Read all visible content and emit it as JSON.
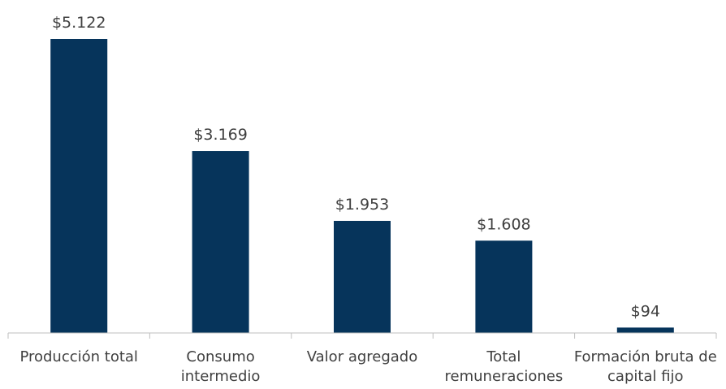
{
  "chart_data": {
    "type": "bar",
    "categories": [
      "Producción total",
      "Consumo intermedio",
      "Valor agregado",
      "Total remuneraciones",
      "Formación bruta de capital fijo"
    ],
    "values": [
      5122,
      3169,
      1953,
      1608,
      94
    ],
    "value_labels": [
      "$5.122",
      "$3.169",
      "$1.953",
      "$1.608",
      "$94"
    ],
    "color": "#06345b"
  }
}
